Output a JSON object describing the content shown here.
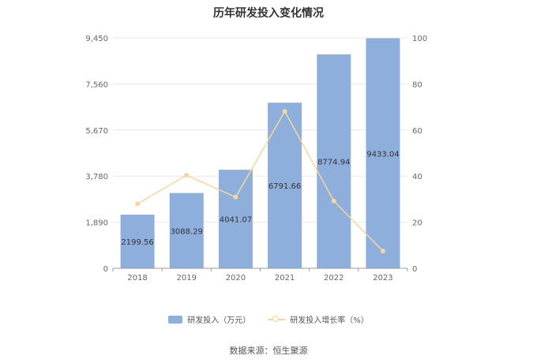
{
  "chart_data": {
    "type": "bar",
    "title": "历年研发投入变化情况",
    "categories": [
      "2018",
      "2019",
      "2020",
      "2021",
      "2022",
      "2023"
    ],
    "series": [
      {
        "name": "研发投入（万元）",
        "type": "bar",
        "axis": "left",
        "values": [
          2199.56,
          3088.29,
          4041.07,
          6791.66,
          8774.94,
          9433.04
        ],
        "labels": [
          "2199.56",
          "3088.29",
          "4041.07",
          "6791.66",
          "8774.94",
          "9433.04"
        ],
        "color": "#8eaedc"
      },
      {
        "name": "研发投入增长率（%）",
        "type": "line",
        "axis": "right",
        "values": [
          28,
          40.4,
          30.9,
          68.1,
          29.2,
          7.5
        ],
        "color": "#f5d79a"
      }
    ],
    "y_left": {
      "min": 0,
      "max": 9450,
      "ticks": [
        "0",
        "1,890",
        "3,780",
        "5,670",
        "7,560",
        "9,450"
      ]
    },
    "y_right": {
      "min": 0,
      "max": 100,
      "ticks": [
        "0",
        "20",
        "40",
        "60",
        "80",
        "100"
      ]
    },
    "grid": true,
    "legend_position": "bottom"
  },
  "source": "数据来源：恒生聚源"
}
